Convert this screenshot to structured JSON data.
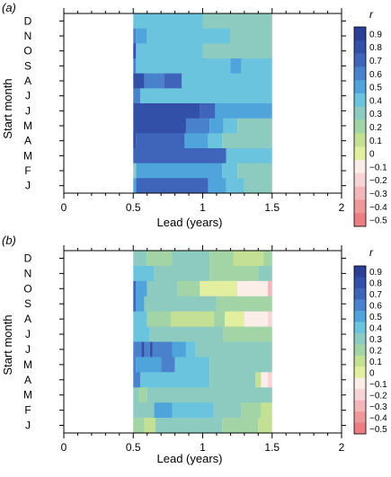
{
  "figure": {
    "ylabel": "Start month",
    "xlabel": "Lead (years)",
    "colorbar_title": "r",
    "xticks": [
      "0",
      "0.5",
      "1",
      "1.5",
      "2"
    ],
    "months": [
      "D",
      "N",
      "O",
      "S",
      "A",
      "J",
      "J",
      "M",
      "A",
      "M",
      "F",
      "J"
    ],
    "colorbar": [
      {
        "label": "0.9",
        "color": "#2b3f96"
      },
      {
        "label": "0.8",
        "color": "#3350a8"
      },
      {
        "label": "0.7",
        "color": "#3e65b9"
      },
      {
        "label": "0.6",
        "color": "#4a81cc"
      },
      {
        "label": "0.5",
        "color": "#4fa4dc"
      },
      {
        "label": "0.4",
        "color": "#6bc4de"
      },
      {
        "label": "0.3",
        "color": "#8dcbc0"
      },
      {
        "label": "0.2",
        "color": "#a3d4a5"
      },
      {
        "label": "0.1",
        "color": "#c4e095"
      },
      {
        "label": "0",
        "color": "#e2ef9f"
      },
      {
        "label": "−0.1",
        "color": "#fbeee9"
      },
      {
        "label": "−0.2",
        "color": "#f8d4d7"
      },
      {
        "label": "−0.3",
        "color": "#f3b6b9"
      },
      {
        "label": "−0.4",
        "color": "#ee989c"
      },
      {
        "label": "−0.5",
        "color": "#ea7e83"
      }
    ]
  },
  "chart_data": [
    {
      "type": "heatmap",
      "panel_label": "(a)",
      "xlim": [
        0,
        2
      ],
      "x_extent": [
        0.5,
        1.5
      ],
      "categories": [
        "D",
        "N",
        "O",
        "S",
        "A",
        "J",
        "J",
        "M",
        "A",
        "M",
        "F",
        "J"
      ],
      "rows": [
        {
          "month": "D",
          "segments": [
            [
              0.5,
              1.0,
              0.4
            ],
            [
              1.0,
              1.5,
              0.3
            ]
          ]
        },
        {
          "month": "N",
          "segments": [
            [
              0.5,
              0.52,
              0.6
            ],
            [
              0.52,
              0.6,
              0.5
            ],
            [
              0.6,
              1.2,
              0.4
            ],
            [
              1.2,
              1.5,
              0.3
            ]
          ]
        },
        {
          "month": "O",
          "segments": [
            [
              0.5,
              0.52,
              0.8
            ],
            [
              0.52,
              1.0,
              0.4
            ],
            [
              1.0,
              1.5,
              0.3
            ]
          ]
        },
        {
          "month": "S",
          "segments": [
            [
              0.5,
              0.52,
              0.6
            ],
            [
              0.52,
              1.2,
              0.4
            ],
            [
              1.2,
              1.28,
              0.5
            ],
            [
              1.28,
              1.5,
              0.4
            ]
          ]
        },
        {
          "month": "A",
          "segments": [
            [
              0.5,
              0.58,
              0.8
            ],
            [
              0.58,
              0.72,
              0.6
            ],
            [
              0.72,
              0.85,
              0.7
            ],
            [
              0.85,
              1.5,
              0.4
            ]
          ]
        },
        {
          "month": "J",
          "segments": [
            [
              0.5,
              0.55,
              0.6
            ],
            [
              0.55,
              1.5,
              0.4
            ]
          ]
        },
        {
          "month": "J",
          "segments": [
            [
              0.5,
              0.98,
              0.8
            ],
            [
              0.98,
              1.09,
              0.7
            ],
            [
              1.09,
              1.5,
              0.5
            ]
          ]
        },
        {
          "month": "M",
          "segments": [
            [
              0.5,
              0.88,
              0.8
            ],
            [
              0.88,
              1.05,
              0.6
            ],
            [
              1.05,
              1.15,
              0.5
            ],
            [
              1.15,
              1.25,
              0.4
            ],
            [
              1.25,
              1.5,
              0.3
            ]
          ]
        },
        {
          "month": "A",
          "segments": [
            [
              0.5,
              0.52,
              0.8
            ],
            [
              0.52,
              0.87,
              0.7
            ],
            [
              0.87,
              1.04,
              0.5
            ],
            [
              1.04,
              1.14,
              0.4
            ],
            [
              1.14,
              1.5,
              0.3
            ]
          ]
        },
        {
          "month": "M",
          "segments": [
            [
              0.5,
              1.17,
              0.7
            ],
            [
              1.17,
              1.5,
              0.4
            ]
          ]
        },
        {
          "month": "F",
          "segments": [
            [
              0.5,
              0.52,
              0.3
            ],
            [
              0.52,
              1.14,
              0.5
            ],
            [
              1.14,
              1.25,
              0.4
            ],
            [
              1.25,
              1.5,
              0.3
            ]
          ]
        },
        {
          "month": "J",
          "segments": [
            [
              0.5,
              0.52,
              0.5
            ],
            [
              0.52,
              1.04,
              0.7
            ],
            [
              1.04,
              1.17,
              0.5
            ],
            [
              1.17,
              1.3,
              0.4
            ],
            [
              1.3,
              1.5,
              0.3
            ]
          ]
        }
      ]
    },
    {
      "type": "heatmap",
      "panel_label": "(b)",
      "xlim": [
        0,
        2
      ],
      "x_extent": [
        0.5,
        1.5
      ],
      "categories": [
        "D",
        "N",
        "O",
        "S",
        "A",
        "J",
        "J",
        "M",
        "A",
        "M",
        "F",
        "J"
      ],
      "rows": [
        {
          "month": "D",
          "segments": [
            [
              0.5,
              0.6,
              0.3
            ],
            [
              0.6,
              0.78,
              0.2
            ],
            [
              0.78,
              1.05,
              0.3
            ],
            [
              1.05,
              1.22,
              0.2
            ],
            [
              1.22,
              1.44,
              0.1
            ],
            [
              1.44,
              1.5,
              0.2
            ]
          ]
        },
        {
          "month": "N",
          "segments": [
            [
              0.5,
              0.65,
              0.4
            ],
            [
              0.65,
              1.05,
              0.3
            ],
            [
              1.05,
              1.4,
              0.2
            ],
            [
              1.4,
              1.5,
              0.3
            ]
          ]
        },
        {
          "month": "O",
          "segments": [
            [
              0.5,
              0.52,
              0.7
            ],
            [
              0.52,
              0.6,
              0.5
            ],
            [
              0.6,
              0.82,
              0.3
            ],
            [
              0.82,
              0.98,
              0.2
            ],
            [
              0.98,
              1.25,
              0.0
            ],
            [
              1.25,
              1.47,
              -0.1
            ],
            [
              1.47,
              1.5,
              -0.3
            ]
          ]
        },
        {
          "month": "S",
          "segments": [
            [
              0.5,
              0.52,
              0.7
            ],
            [
              0.52,
              0.58,
              0.5
            ],
            [
              0.58,
              1.1,
              0.3
            ],
            [
              1.1,
              1.5,
              0.2
            ]
          ]
        },
        {
          "month": "A",
          "segments": [
            [
              0.5,
              0.6,
              0.4
            ],
            [
              0.6,
              0.77,
              0.2
            ],
            [
              0.77,
              1.08,
              0.1
            ],
            [
              1.08,
              1.16,
              0.2
            ],
            [
              1.16,
              1.3,
              0.0
            ],
            [
              1.3,
              1.47,
              -0.1
            ],
            [
              1.47,
              1.5,
              -0.2
            ]
          ]
        },
        {
          "month": "J",
          "segments": [
            [
              0.5,
              0.62,
              0.4
            ],
            [
              0.62,
              1.15,
              0.3
            ],
            [
              1.15,
              1.5,
              0.2
            ]
          ]
        },
        {
          "month": "J",
          "segments": [
            [
              0.5,
              0.56,
              0.6
            ],
            [
              0.56,
              0.58,
              0.8
            ],
            [
              0.58,
              0.62,
              0.6
            ],
            [
              0.62,
              0.64,
              0.8
            ],
            [
              0.64,
              0.78,
              0.6
            ],
            [
              0.78,
              0.88,
              0.5
            ],
            [
              0.88,
              0.95,
              0.4
            ],
            [
              0.95,
              1.5,
              0.3
            ]
          ]
        },
        {
          "month": "M",
          "segments": [
            [
              0.5,
              0.52,
              0.6
            ],
            [
              0.52,
              0.7,
              0.5
            ],
            [
              0.7,
              0.8,
              0.6
            ],
            [
              0.8,
              1.05,
              0.4
            ],
            [
              1.05,
              1.5,
              0.3
            ]
          ]
        },
        {
          "month": "A",
          "segments": [
            [
              0.5,
              0.55,
              0.6
            ],
            [
              0.55,
              1.05,
              0.4
            ],
            [
              1.05,
              1.38,
              0.3
            ],
            [
              1.38,
              1.42,
              0.1
            ],
            [
              1.42,
              1.47,
              -0.1
            ],
            [
              1.47,
              1.5,
              -0.2
            ]
          ]
        },
        {
          "month": "M",
          "segments": [
            [
              0.5,
              0.54,
              0.3
            ],
            [
              0.54,
              0.6,
              0.2
            ],
            [
              0.6,
              1.5,
              0.3
            ]
          ]
        },
        {
          "month": "F",
          "segments": [
            [
              0.5,
              0.65,
              0.3
            ],
            [
              0.65,
              0.78,
              0.5
            ],
            [
              0.78,
              1.08,
              0.4
            ],
            [
              1.08,
              1.28,
              0.3
            ],
            [
              1.28,
              1.42,
              0.2
            ],
            [
              1.42,
              1.5,
              0.1
            ]
          ]
        },
        {
          "month": "J",
          "segments": [
            [
              0.5,
              0.58,
              0.2
            ],
            [
              0.58,
              0.66,
              0.1
            ],
            [
              0.66,
              1.14,
              0.3
            ],
            [
              1.14,
              1.4,
              0.2
            ],
            [
              1.4,
              1.5,
              0.1
            ]
          ]
        }
      ]
    }
  ]
}
